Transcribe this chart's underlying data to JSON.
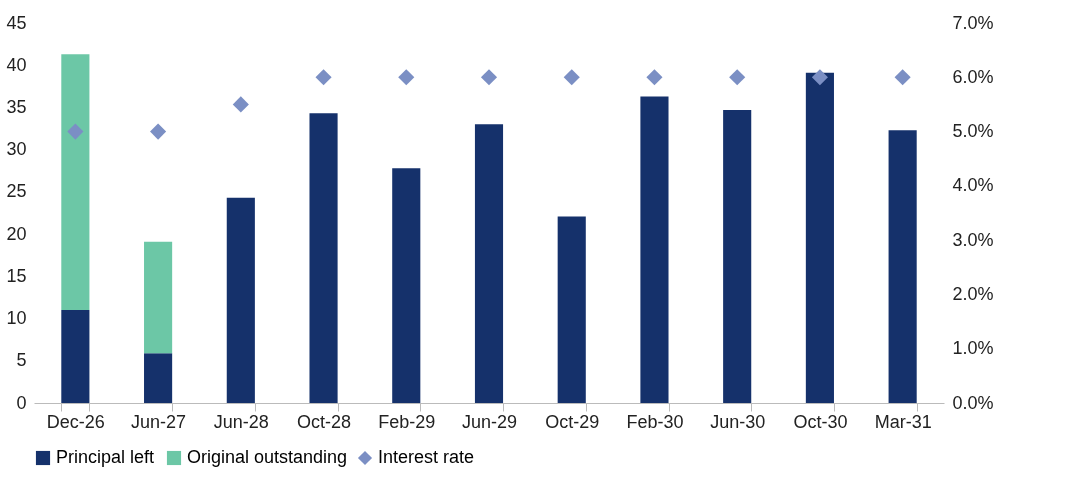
{
  "chart_data": {
    "type": "bar",
    "stacked": true,
    "categories": [
      "Dec-26",
      "Jun-27",
      "Jun-28",
      "Oct-28",
      "Feb-29",
      "Jun-29",
      "Oct-29",
      "Feb-30",
      "Jun-30",
      "Oct-30",
      "Mar-31"
    ],
    "series": [
      {
        "name": "Principal left",
        "color": "#15316b",
        "values": [
          11.0,
          5.9,
          24.3,
          34.3,
          27.8,
          33.0,
          22.1,
          36.3,
          34.7,
          39.1,
          32.3
        ]
      },
      {
        "name": "Original outstanding",
        "color": "#6cc7a6",
        "values": [
          30.3,
          13.2,
          null,
          null,
          null,
          null,
          null,
          null,
          null,
          null,
          null
        ]
      },
      {
        "name": "Interest rate",
        "type": "scatter",
        "axis": "y2",
        "marker": "diamond",
        "color": "#7b8fc4",
        "values": [
          5.0,
          5.0,
          5.5,
          6.0,
          6.0,
          6.0,
          6.0,
          6.0,
          6.0,
          6.0,
          6.0
        ]
      }
    ],
    "ylim": [
      0,
      45
    ],
    "yticks": [
      0,
      5,
      10,
      15,
      20,
      25,
      30,
      35,
      40,
      45
    ],
    "y2lim": [
      0,
      7
    ],
    "y2ticks": [
      {
        "value": 0,
        "label": "0.0%"
      },
      {
        "value": 1,
        "label": "1.0%"
      },
      {
        "value": 2,
        "label": "2.0%"
      },
      {
        "value": 3,
        "label": "3.0%"
      },
      {
        "value": 4,
        "label": "4.0%"
      },
      {
        "value": 5,
        "label": "5.0%"
      },
      {
        "value": 6,
        "label": "6.0%"
      },
      {
        "value": 7,
        "label": "7.0%"
      }
    ],
    "grid": false,
    "legend": "bottom"
  }
}
